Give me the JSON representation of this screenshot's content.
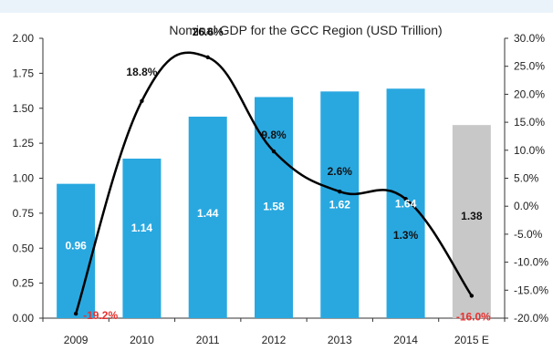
{
  "chart_data": {
    "type": "bar",
    "title": "Nominal GDP for the GCC Region (USD Trillion)",
    "categories": [
      "2009",
      "2010",
      "2011",
      "2012",
      "2013",
      "2014",
      "2015 E"
    ],
    "series": [
      {
        "kind": "bar",
        "values": [
          0.96,
          1.14,
          1.44,
          1.58,
          1.62,
          1.64,
          1.38
        ],
        "labels": [
          "0.96",
          "1.14",
          "1.44",
          "1.58",
          "1.62",
          "1.64",
          "1.38"
        ],
        "colors": [
          "#29a8e0",
          "#29a8e0",
          "#29a8e0",
          "#29a8e0",
          "#29a8e0",
          "#29a8e0",
          "#c8c8c8"
        ]
      },
      {
        "kind": "line",
        "axis": "right",
        "values": [
          -19.2,
          18.8,
          26.6,
          9.8,
          2.6,
          1.3,
          -16.0
        ],
        "labels": [
          "-19.2%",
          "18.8%",
          "26.6%",
          "9.8%",
          "2.6%",
          "1.3%",
          "-16.0%"
        ],
        "label_colors": [
          "#e8312f",
          "#111111",
          "#111111",
          "#111111",
          "#111111",
          "#111111",
          "#e8312f"
        ],
        "color": "#000000"
      }
    ],
    "y_left": {
      "ylim": [
        0,
        2.0
      ],
      "ticks": [
        "0.00",
        "0.25",
        "0.50",
        "0.75",
        "1.00",
        "1.25",
        "1.50",
        "1.75",
        "2.00"
      ]
    },
    "y_right": {
      "ylim": [
        -20,
        30
      ],
      "ticks": [
        "-20.0%",
        "-15.0%",
        "-10.0%",
        "-5.0%",
        "0.0%",
        "5.0%",
        "10.0%",
        "15.0%",
        "20.0%",
        "25.0%",
        "30.0%"
      ]
    },
    "grid": false,
    "legend": "none"
  }
}
